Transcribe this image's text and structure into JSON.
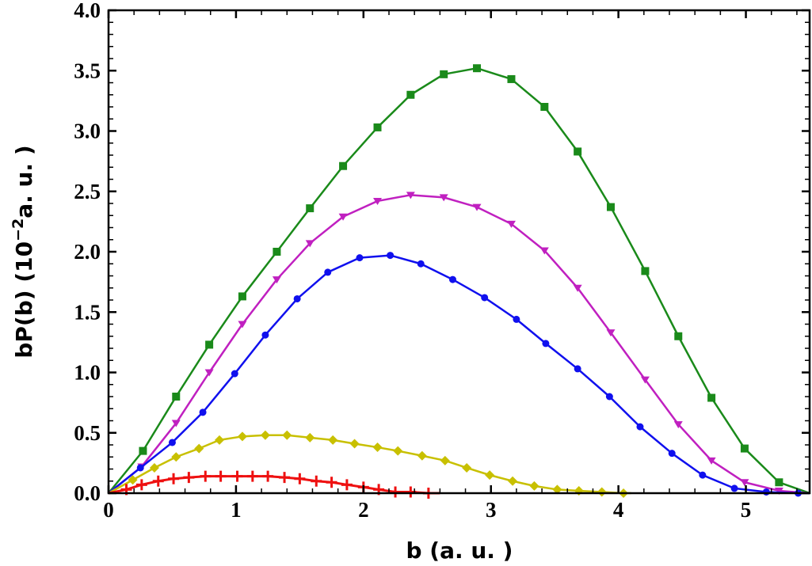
{
  "chart_data": {
    "type": "line",
    "title": "",
    "xlabel": "b (a. u. )",
    "ylabel_main": "bP(b) (10",
    "ylabel_sup": "−2",
    "ylabel_tail": "a. u. )",
    "xlim": [
      0,
      5.5
    ],
    "ylim": [
      0,
      4.0
    ],
    "xticks": [
      0,
      1,
      2,
      3,
      4,
      5
    ],
    "xtick_labels": [
      "0",
      "1",
      "2",
      "3",
      "4",
      "5"
    ],
    "yticks": [
      0,
      0.5,
      1.0,
      1.5,
      2.0,
      2.5,
      3.0,
      3.5,
      4.0
    ],
    "ytick_labels": [
      "0.0",
      "0.5",
      "1.0",
      "1.5",
      "2.0",
      "2.5",
      "3.0",
      "3.5",
      "4.0"
    ],
    "grid": false,
    "legend": "none",
    "series": [
      {
        "name": "green-squares",
        "color": "#1a8a1a",
        "marker": "square",
        "x": [
          0.27,
          0.53,
          0.79,
          1.05,
          1.32,
          1.58,
          1.84,
          2.11,
          2.37,
          2.63,
          2.89,
          3.16,
          3.42,
          3.68,
          3.94,
          4.21,
          4.47,
          4.73,
          4.99,
          5.26
        ],
        "y": [
          0.35,
          0.8,
          1.23,
          1.63,
          2.0,
          2.36,
          2.71,
          3.03,
          3.3,
          3.47,
          3.52,
          3.43,
          3.2,
          2.83,
          2.37,
          1.84,
          1.3,
          0.79,
          0.37,
          0.09
        ],
        "end": [
          5.5,
          0.0
        ]
      },
      {
        "name": "magenta-triangles",
        "color": "#c020c0",
        "marker": "triangle-down",
        "x": [
          0.26,
          0.53,
          0.79,
          1.05,
          1.32,
          1.58,
          1.84,
          2.11,
          2.37,
          2.63,
          2.89,
          3.16,
          3.42,
          3.68,
          3.94,
          4.21,
          4.47,
          4.73,
          4.99,
          5.26
        ],
        "y": [
          0.22,
          0.58,
          1.0,
          1.4,
          1.77,
          2.07,
          2.29,
          2.42,
          2.47,
          2.45,
          2.37,
          2.23,
          2.01,
          1.7,
          1.33,
          0.94,
          0.57,
          0.27,
          0.09,
          0.02
        ],
        "end": [
          5.5,
          0.0
        ]
      },
      {
        "name": "blue-circles",
        "color": "#1010ee",
        "marker": "circle",
        "x": [
          0.25,
          0.5,
          0.74,
          0.99,
          1.23,
          1.48,
          1.72,
          1.97,
          2.21,
          2.45,
          2.7,
          2.95,
          3.2,
          3.43,
          3.68,
          3.93,
          4.17,
          4.42,
          4.66,
          4.91,
          5.16,
          5.41
        ],
        "y": [
          0.21,
          0.42,
          0.67,
          0.99,
          1.31,
          1.61,
          1.83,
          1.95,
          1.97,
          1.9,
          1.77,
          1.62,
          1.44,
          1.24,
          1.03,
          0.8,
          0.55,
          0.33,
          0.15,
          0.04,
          0.01,
          0.0
        ],
        "end": [
          5.5,
          0.0
        ]
      },
      {
        "name": "yellow-diamonds",
        "color": "#c8c000",
        "marker": "diamond",
        "x": [
          0.19,
          0.36,
          0.53,
          0.71,
          0.87,
          1.05,
          1.23,
          1.4,
          1.58,
          1.76,
          1.93,
          2.11,
          2.27,
          2.46,
          2.64,
          2.81,
          2.99,
          3.17,
          3.34,
          3.52,
          3.69,
          3.87,
          4.04
        ],
        "y": [
          0.11,
          0.21,
          0.3,
          0.37,
          0.44,
          0.47,
          0.48,
          0.48,
          0.46,
          0.44,
          0.41,
          0.38,
          0.35,
          0.31,
          0.27,
          0.21,
          0.15,
          0.1,
          0.06,
          0.03,
          0.02,
          0.01,
          0.0
        ],
        "end": [
          4.1,
          0.0
        ]
      },
      {
        "name": "red-crosses",
        "color": "#ee1010",
        "marker": "plus",
        "x": [
          0.14,
          0.26,
          0.39,
          0.51,
          0.63,
          0.76,
          0.88,
          1.01,
          1.13,
          1.25,
          1.38,
          1.5,
          1.63,
          1.75,
          1.87,
          2.0,
          2.12,
          2.25,
          2.37,
          2.51
        ],
        "y": [
          0.03,
          0.07,
          0.1,
          0.12,
          0.13,
          0.14,
          0.14,
          0.14,
          0.14,
          0.14,
          0.13,
          0.12,
          0.1,
          0.09,
          0.07,
          0.05,
          0.03,
          0.01,
          0.01,
          0.0
        ],
        "end": [
          2.6,
          0.0
        ]
      }
    ]
  }
}
